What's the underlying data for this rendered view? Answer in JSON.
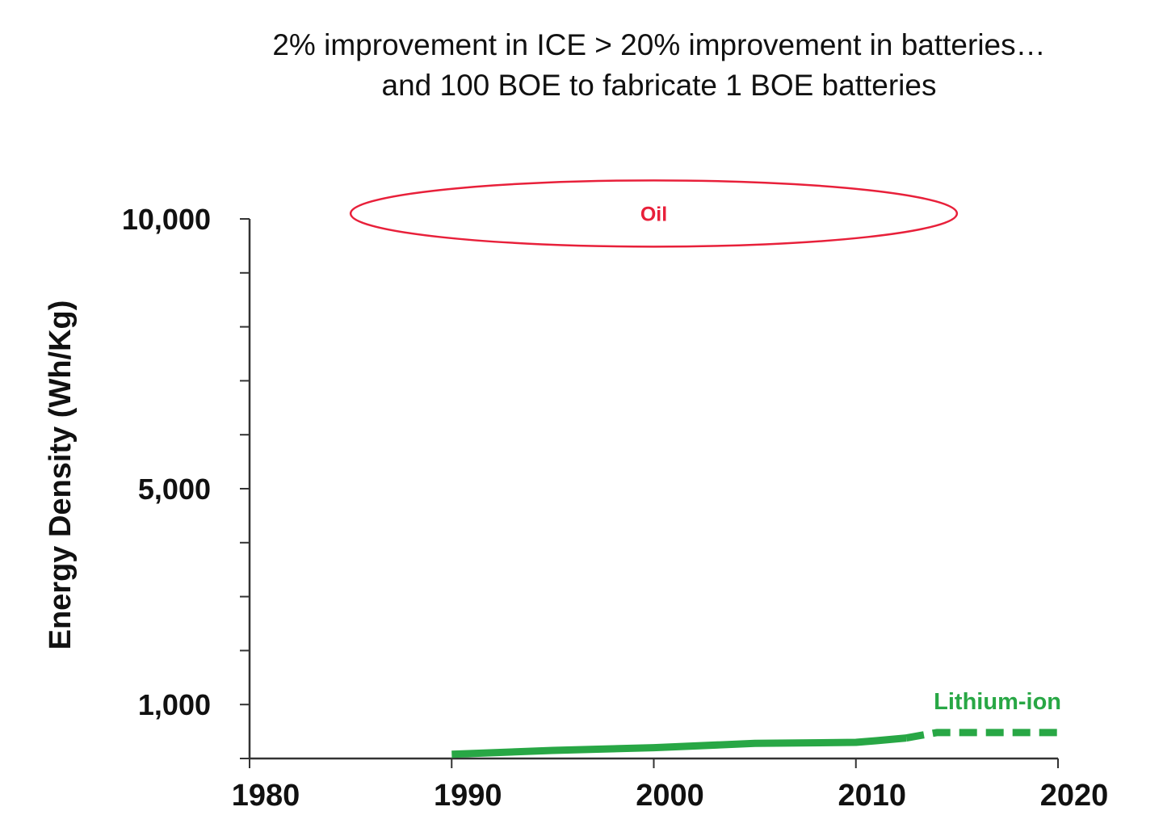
{
  "title": {
    "line1": "2% improvement in ICE > 20% improvement in batteries…",
    "line2": "and 100 BOE to fabricate 1 BOE batteries"
  },
  "colors": {
    "oil": "#e8203a",
    "lithium_ion": "#28a745",
    "axis": "#333333",
    "text": "#111111"
  },
  "chart_data": {
    "type": "line",
    "title": "2% improvement in ICE > 20% improvement in batteries… and 100 BOE to fabricate 1 BOE batteries",
    "xlabel": "",
    "ylabel": "Energy Density (Wh/Kg)",
    "xlim": [
      1980,
      2020
    ],
    "ylim": [
      0,
      10000
    ],
    "x_ticks": [
      1980,
      1990,
      2000,
      2010,
      2020
    ],
    "y_tick_labels": [
      "10,000",
      "5,000",
      "1,000"
    ],
    "y_tick_label_values": [
      10000,
      5000,
      1000
    ],
    "y_minor_ticks": [
      0,
      1000,
      2000,
      3000,
      4000,
      5000,
      6000,
      7000,
      8000,
      9000,
      10000
    ],
    "grid": false,
    "series": [
      {
        "name": "Lithium-ion",
        "style": "solid",
        "x": [
          1990,
          1995,
          2000,
          2005,
          2010,
          2011,
          2012.5
        ],
        "y": [
          80,
          150,
          200,
          280,
          300,
          330,
          380
        ]
      },
      {
        "name": "Lithium-ion",
        "style": "dashed",
        "x": [
          2012.5,
          2014,
          2020
        ],
        "y": [
          380,
          480,
          480
        ]
      }
    ],
    "annotations": [
      {
        "text": "Oil",
        "shape": "ellipse",
        "x_range": [
          1985,
          2015
        ],
        "y_center": 10100
      }
    ]
  }
}
